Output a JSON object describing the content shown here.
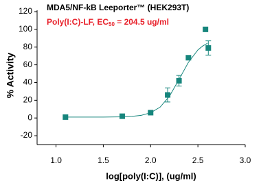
{
  "chart_data": {
    "type": "scatter",
    "title": "MDA5/NF-kB Leeporter™ (HEK293T)",
    "subtitle": [
      "Poly(I:C)-LF, EC",
      "50",
      " = 204.5 ug/ml"
    ],
    "x_label": "log[poly(I:C)], (ug/ml)",
    "y_label": "% Activity",
    "xlim": [
      0.8,
      3.0
    ],
    "xticks": [
      {
        "value": 1,
        "label": "1.0"
      },
      1.5,
      {
        "value": 2,
        "label": "2.0"
      },
      2.5,
      {
        "value": 3,
        "label": "3.0"
      }
    ],
    "ylim": [
      -30,
      120
    ],
    "yticks": [
      -20,
      0,
      20,
      40,
      60,
      80,
      100,
      120
    ],
    "series": [
      {
        "color": "#16857c",
        "x": [
          1.1,
          1.7,
          2.0,
          2.18,
          2.3,
          2.4,
          2.58,
          2.61
        ],
        "values": [
          1,
          2,
          6,
          26,
          42,
          68,
          100,
          79
        ],
        "errors": [
          null,
          null,
          null,
          8,
          6,
          null,
          null,
          8
        ]
      },
      {
        "color": "#16857c",
        "x": [
          1.1,
          1.5,
          1.7,
          1.8,
          1.9,
          2.0,
          2.1,
          2.2,
          2.3,
          2.4,
          2.5,
          2.55,
          2.6
        ],
        "values": [
          1.0,
          1.0,
          1.3,
          1.8,
          3.0,
          5.9,
          12.2,
          24.7,
          43.5,
          62.9,
          76.8,
          81.2,
          84.3
        ]
      }
    ]
  }
}
